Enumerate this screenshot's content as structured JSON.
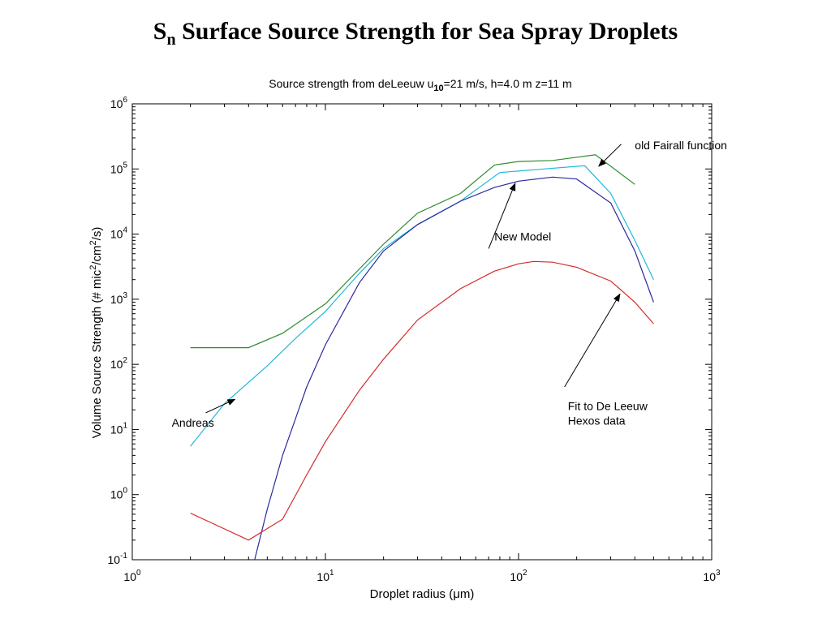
{
  "slide": {
    "title_main": "S",
    "title_sub": "n",
    "title_rest": " Surface Source Strength for Sea Spray Droplets"
  },
  "chart_data": {
    "type": "line",
    "title_parts": [
      "Source strength from deLeeuw u",
      "10",
      "=21 m/s, h=4.0 m z=11 m"
    ],
    "xlabel": "Droplet radius (μm)",
    "ylabel_parts": [
      "Volume Source Strength (# mic",
      "2",
      "/cm",
      "2",
      "/s)"
    ],
    "x_scale": "log",
    "y_scale": "log",
    "xlim": [
      1,
      1000
    ],
    "ylim": [
      0.1,
      1000000
    ],
    "x_ticks": [
      {
        "base": "10",
        "exp": "0",
        "value": 1
      },
      {
        "base": "10",
        "exp": "1",
        "value": 10
      },
      {
        "base": "10",
        "exp": "2",
        "value": 100
      },
      {
        "base": "10",
        "exp": "3",
        "value": 1000
      }
    ],
    "y_ticks": [
      {
        "base": "10",
        "exp": "-1",
        "value": 0.1
      },
      {
        "base": "10",
        "exp": "0",
        "value": 1
      },
      {
        "base": "10",
        "exp": "1",
        "value": 10
      },
      {
        "base": "10",
        "exp": "2",
        "value": 100
      },
      {
        "base": "10",
        "exp": "3",
        "value": 1000
      },
      {
        "base": "10",
        "exp": "4",
        "value": 10000
      },
      {
        "base": "10",
        "exp": "5",
        "value": 100000
      },
      {
        "base": "10",
        "exp": "6",
        "value": 1000000
      }
    ],
    "grid": false,
    "series": [
      {
        "key": "old-fairall",
        "color": "#2e8b2e",
        "points": [
          [
            2,
            180
          ],
          [
            4,
            180
          ],
          [
            6,
            300
          ],
          [
            10,
            850
          ],
          [
            20,
            7000
          ],
          [
            30,
            21000
          ],
          [
            50,
            42000
          ],
          [
            75,
            115000
          ],
          [
            100,
            130000
          ],
          [
            150,
            135000
          ],
          [
            250,
            165000
          ],
          [
            400,
            58000
          ]
        ]
      },
      {
        "key": "andreas",
        "color": "#1fb8d8",
        "points": [
          [
            2,
            5.5
          ],
          [
            3,
            25
          ],
          [
            5,
            95
          ],
          [
            7,
            250
          ],
          [
            10,
            650
          ],
          [
            15,
            2500
          ],
          [
            20,
            6000
          ],
          [
            30,
            14000
          ],
          [
            50,
            32000
          ],
          [
            80,
            88000
          ],
          [
            120,
            97000
          ],
          [
            220,
            112000
          ],
          [
            300,
            42000
          ],
          [
            400,
            8000
          ],
          [
            500,
            2000
          ]
        ]
      },
      {
        "key": "new-model",
        "color": "#2a2a9e",
        "points": [
          [
            4.3,
            0.1
          ],
          [
            5,
            0.6
          ],
          [
            6,
            4
          ],
          [
            8,
            45
          ],
          [
            10,
            200
          ],
          [
            15,
            1800
          ],
          [
            20,
            5500
          ],
          [
            30,
            14000
          ],
          [
            50,
            32000
          ],
          [
            75,
            52000
          ],
          [
            100,
            65000
          ],
          [
            150,
            75000
          ],
          [
            200,
            70000
          ],
          [
            300,
            30000
          ],
          [
            400,
            5500
          ],
          [
            500,
            900
          ]
        ]
      },
      {
        "key": "fit-de-leeuw",
        "color": "#d62a2a",
        "points": [
          [
            2,
            0.52
          ],
          [
            4,
            0.2
          ],
          [
            6,
            0.42
          ],
          [
            8,
            2.0
          ],
          [
            10,
            6.5
          ],
          [
            15,
            40
          ],
          [
            20,
            120
          ],
          [
            30,
            480
          ],
          [
            50,
            1450
          ],
          [
            75,
            2700
          ],
          [
            100,
            3500
          ],
          [
            120,
            3800
          ],
          [
            150,
            3700
          ],
          [
            200,
            3100
          ],
          [
            300,
            1900
          ],
          [
            400,
            900
          ],
          [
            500,
            420
          ]
        ]
      }
    ],
    "annotations": [
      {
        "key": "old-fairall",
        "lines": [
          "old Fairall function"
        ],
        "text_at": [
          400,
          200000
        ],
        "arrow_from": [
          340,
          240000
        ],
        "arrow_to": [
          260,
          110000
        ]
      },
      {
        "key": "new-model",
        "lines": [
          "New Model"
        ],
        "text_at": [
          75,
          8000
        ],
        "arrow_from": [
          70,
          6000
        ],
        "arrow_to": [
          96,
          60000
        ]
      },
      {
        "key": "andreas",
        "lines": [
          "Andreas"
        ],
        "text_at": [
          1.6,
          11
        ],
        "arrow_from": [
          2.4,
          18
        ],
        "arrow_to": [
          3.4,
          29
        ]
      },
      {
        "key": "fit-de-leeuw",
        "lines": [
          "Fit to De Leeuw",
          "Hexos data"
        ],
        "text_at": [
          180,
          20
        ],
        "arrow_from": [
          173,
          45
        ],
        "arrow_to": [
          335,
          1200
        ]
      }
    ]
  }
}
